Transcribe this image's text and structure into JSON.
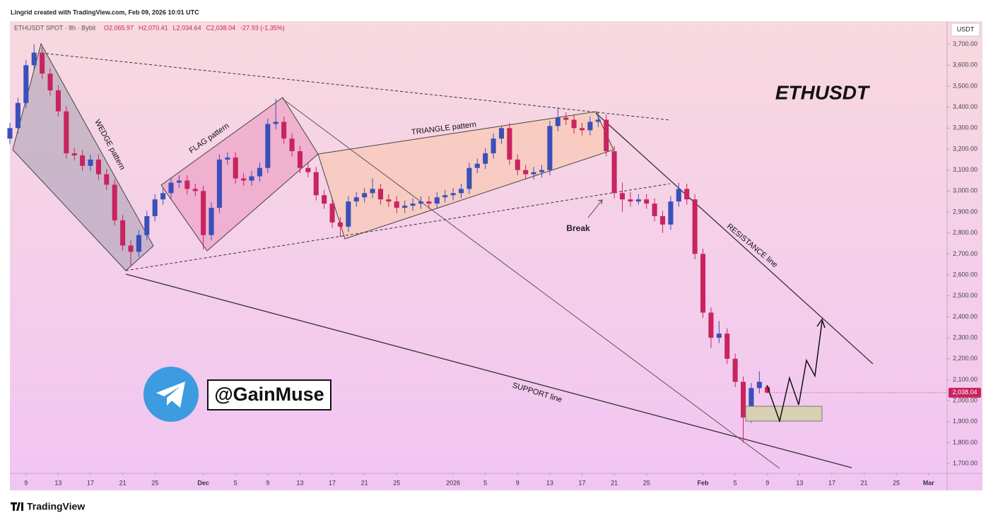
{
  "chart_data": {
    "type": "candlestick",
    "attribution": "Lingrid created with TradingView.com, Feb 09, 2026 10:01 UTC",
    "symbol_line": "ETHUSDT SPOT · 8h · Bybit",
    "ohlc_header": [
      "O2,065.97",
      "H2,070.41",
      "L2,034.64",
      "C2,038.04",
      "-27.93 (-1.35%)"
    ],
    "currency": "USDT",
    "title": "ETHUSDT",
    "handle": "@GainMuse",
    "brand": "TradingView",
    "annotations": [
      "WEDGE pattern",
      "FLAG pattern",
      "TRIANGLE pattern",
      "Break",
      "RESISTANCE line",
      "SUPPORT line"
    ],
    "up_color": "#3a4fb8",
    "down_color": "#c8245e",
    "candles": [
      [
        3250,
        3325,
        3225,
        3300
      ],
      [
        3300,
        3445,
        3275,
        3420
      ],
      [
        3420,
        3625,
        3395,
        3600
      ],
      [
        3600,
        3700,
        3575,
        3660
      ],
      [
        3660,
        3685,
        3535,
        3560
      ],
      [
        3560,
        3585,
        3455,
        3480
      ],
      [
        3480,
        3505,
        3355,
        3380
      ],
      [
        3380,
        3405,
        3155,
        3180
      ],
      [
        3180,
        3205,
        3145,
        3170
      ],
      [
        3170,
        3195,
        3095,
        3120
      ],
      [
        3120,
        3175,
        3095,
        3150
      ],
      [
        3150,
        3175,
        3055,
        3080
      ],
      [
        3080,
        3105,
        3005,
        3030
      ],
      [
        3030,
        3055,
        2835,
        2860
      ],
      [
        2860,
        2885,
        2715,
        2740
      ],
      [
        2740,
        2765,
        2640,
        2710
      ],
      [
        2710,
        2815,
        2685,
        2790
      ],
      [
        2790,
        2905,
        2765,
        2880
      ],
      [
        2880,
        2985,
        2855,
        2960
      ],
      [
        2960,
        3015,
        2935,
        2990
      ],
      [
        2990,
        3065,
        2965,
        3040
      ],
      [
        3040,
        3075,
        3015,
        3050
      ],
      [
        3050,
        3075,
        2985,
        3010
      ],
      [
        3010,
        3035,
        2975,
        3000
      ],
      [
        3000,
        3025,
        2720,
        2790
      ],
      [
        2790,
        2945,
        2765,
        2920
      ],
      [
        2920,
        3175,
        2895,
        3150
      ],
      [
        3150,
        3185,
        3125,
        3160
      ],
      [
        3160,
        3185,
        3035,
        3060
      ],
      [
        3060,
        3085,
        3025,
        3050
      ],
      [
        3050,
        3095,
        3025,
        3070
      ],
      [
        3070,
        3135,
        3045,
        3110
      ],
      [
        3110,
        3345,
        3085,
        3320
      ],
      [
        3320,
        3440,
        3295,
        3330
      ],
      [
        3330,
        3355,
        3225,
        3250
      ],
      [
        3250,
        3275,
        3165,
        3190
      ],
      [
        3190,
        3215,
        3085,
        3110
      ],
      [
        3110,
        3135,
        3065,
        3090
      ],
      [
        3090,
        3115,
        2955,
        2980
      ],
      [
        2980,
        3005,
        2915,
        2940
      ],
      [
        2940,
        2965,
        2825,
        2850
      ],
      [
        2850,
        2875,
        2780,
        2830
      ],
      [
        2830,
        2975,
        2805,
        2950
      ],
      [
        2950,
        2995,
        2925,
        2970
      ],
      [
        2970,
        3015,
        2945,
        2990
      ],
      [
        2990,
        3060,
        2965,
        3010
      ],
      [
        3010,
        3035,
        2935,
        2960
      ],
      [
        2960,
        2985,
        2925,
        2950
      ],
      [
        2950,
        2975,
        2895,
        2920
      ],
      [
        2920,
        2955,
        2895,
        2930
      ],
      [
        2930,
        2965,
        2905,
        2940
      ],
      [
        2940,
        2975,
        2915,
        2950
      ],
      [
        2950,
        2975,
        2915,
        2940
      ],
      [
        2940,
        2995,
        2915,
        2970
      ],
      [
        2970,
        3005,
        2945,
        2980
      ],
      [
        2980,
        3015,
        2955,
        2990
      ],
      [
        2990,
        3035,
        2965,
        3010
      ],
      [
        3010,
        3135,
        2985,
        3110
      ],
      [
        3110,
        3155,
        3085,
        3130
      ],
      [
        3130,
        3205,
        3105,
        3180
      ],
      [
        3180,
        3275,
        3155,
        3250
      ],
      [
        3250,
        3310,
        3225,
        3300
      ],
      [
        3300,
        3325,
        3125,
        3150
      ],
      [
        3150,
        3175,
        3075,
        3100
      ],
      [
        3100,
        3125,
        3055,
        3080
      ],
      [
        3080,
        3115,
        3055,
        3090
      ],
      [
        3090,
        3125,
        3065,
        3100
      ],
      [
        3100,
        3335,
        3075,
        3310
      ],
      [
        3310,
        3400,
        3285,
        3350
      ],
      [
        3350,
        3375,
        3315,
        3340
      ],
      [
        3340,
        3365,
        3275,
        3300
      ],
      [
        3300,
        3325,
        3265,
        3290
      ],
      [
        3290,
        3355,
        3265,
        3330
      ],
      [
        3330,
        3380,
        3305,
        3340
      ],
      [
        3340,
        3365,
        3165,
        3190
      ],
      [
        3190,
        3215,
        2965,
        2990
      ],
      [
        2990,
        3040,
        2900,
        2960
      ],
      [
        2960,
        2995,
        2925,
        2950
      ],
      [
        2950,
        2985,
        2935,
        2960
      ],
      [
        2960,
        2985,
        2915,
        2940
      ],
      [
        2940,
        2965,
        2855,
        2880
      ],
      [
        2880,
        2905,
        2800,
        2840
      ],
      [
        2840,
        2975,
        2815,
        2950
      ],
      [
        2950,
        3040,
        2925,
        3010
      ],
      [
        3010,
        3035,
        2935,
        2960
      ],
      [
        2960,
        2985,
        2675,
        2700
      ],
      [
        2700,
        2725,
        2395,
        2420
      ],
      [
        2420,
        2445,
        2250,
        2300
      ],
      [
        2300,
        2380,
        2275,
        2320
      ],
      [
        2320,
        2345,
        2175,
        2200
      ],
      [
        2200,
        2225,
        2065,
        2090
      ],
      [
        2090,
        2115,
        1800,
        1920
      ],
      [
        1920,
        2085,
        1895,
        2060
      ],
      [
        2060,
        2140,
        2035,
        2090
      ],
      [
        2065.97,
        2070.41,
        2034.64,
        2038.04
      ]
    ],
    "last_price": {
      "value": 2038.04,
      "label": "2,038.04"
    },
    "xlim": [
      0,
      116.3
    ],
    "xticks": [
      {
        "value": 2,
        "label": "9"
      },
      {
        "value": 6,
        "label": "13"
      },
      {
        "value": 10,
        "label": "17"
      },
      {
        "value": 14,
        "label": "21"
      },
      {
        "value": 18,
        "label": "25"
      },
      {
        "value": 24,
        "label": "Dec"
      },
      {
        "value": 28,
        "label": "5"
      },
      {
        "value": 32,
        "label": "9"
      },
      {
        "value": 36,
        "label": "13"
      },
      {
        "value": 40,
        "label": "17"
      },
      {
        "value": 44,
        "label": "21"
      },
      {
        "value": 48,
        "label": "25"
      },
      {
        "value": 55,
        "label": "2026"
      },
      {
        "value": 59,
        "label": "5"
      },
      {
        "value": 63,
        "label": "9"
      },
      {
        "value": 67,
        "label": "13"
      },
      {
        "value": 71,
        "label": "17"
      },
      {
        "value": 75,
        "label": "21"
      },
      {
        "value": 79,
        "label": "25"
      },
      {
        "value": 86,
        "label": "Feb"
      },
      {
        "value": 90,
        "label": "5"
      },
      {
        "value": 94,
        "label": "9"
      },
      {
        "value": 98,
        "label": "13"
      },
      {
        "value": 102,
        "label": "17"
      },
      {
        "value": 106,
        "label": "21"
      },
      {
        "value": 110,
        "label": "25"
      },
      {
        "value": 114,
        "label": "Mar"
      }
    ],
    "ylim": [
      1660,
      3810
    ],
    "yticks": [
      {
        "value": 1700,
        "label": "1,700.00"
      },
      {
        "value": 1800,
        "label": "1,800.00"
      },
      {
        "value": 1900,
        "label": "1,900.00"
      },
      {
        "value": 2000,
        "label": "2,000.00"
      },
      {
        "value": 2100,
        "label": "2,100.00"
      },
      {
        "value": 2200,
        "label": "2,200.00"
      },
      {
        "value": 2300,
        "label": "2,300.00"
      },
      {
        "value": 2400,
        "label": "2,400.00"
      },
      {
        "value": 2500,
        "label": "2,500.00"
      },
      {
        "value": 2600,
        "label": "2,600.00"
      },
      {
        "value": 2700,
        "label": "2,700.00"
      },
      {
        "value": 2800,
        "label": "2,800.00"
      },
      {
        "value": 2900,
        "label": "2,900.00"
      },
      {
        "value": 3000,
        "label": "3,000.00"
      },
      {
        "value": 3100,
        "label": "3,100.00"
      },
      {
        "value": 3200,
        "label": "3,200.00"
      },
      {
        "value": 3300,
        "label": "3,300.00"
      },
      {
        "value": 3400,
        "label": "3,400.00"
      },
      {
        "value": 3500,
        "label": "3,500.00"
      },
      {
        "value": 3600,
        "label": "3,600.00"
      },
      {
        "value": 3700,
        "label": "3,700.00"
      }
    ]
  }
}
